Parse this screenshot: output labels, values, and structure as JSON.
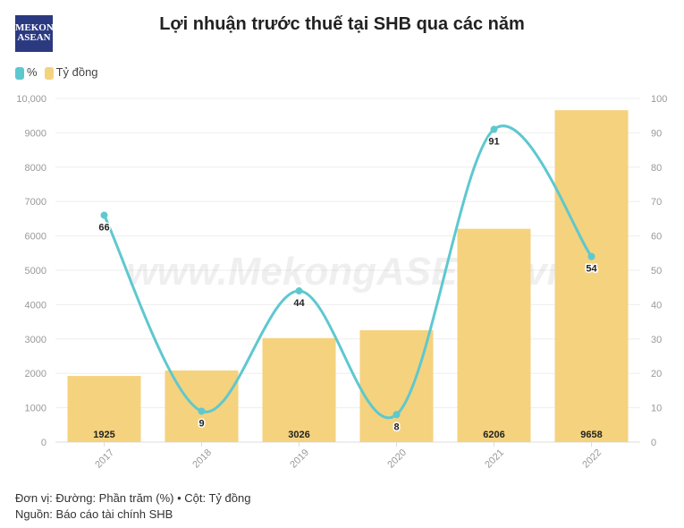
{
  "logo": {
    "line1": "MEKONG",
    "line2": "ASEAN"
  },
  "watermark": "www.MekongASEAN.vn",
  "chart_data": {
    "type": "bar+line",
    "title": "Lợi nhuận trước thuế tại SHB qua các năm",
    "categories": [
      "2017",
      "2018",
      "2019",
      "2020",
      "2021",
      "2022"
    ],
    "series": [
      {
        "name": "%",
        "type": "line",
        "axis": "right",
        "values": [
          66,
          9,
          44,
          8,
          91,
          54
        ],
        "color": "#5ec8cf"
      },
      {
        "name": "Tỷ đồng",
        "type": "bar",
        "axis": "left",
        "values": [
          1925,
          2083,
          3026,
          3255,
          6206,
          9658
        ],
        "labels": [
          "1925",
          "",
          "3026",
          "",
          "6206",
          "9658"
        ],
        "color": "#f5d27d"
      }
    ],
    "ylim_left": [
      0,
      10000
    ],
    "yticks_left": [
      "0",
      "1000",
      "2000",
      "3000",
      "4000",
      "5000",
      "6000",
      "7000",
      "8000",
      "9000",
      "10,000"
    ],
    "ylim_right": [
      0,
      100
    ],
    "yticks_right": [
      "0",
      "10",
      "20",
      "30",
      "40",
      "50",
      "60",
      "70",
      "80",
      "90",
      "100"
    ],
    "grid": true,
    "legend": "top-left"
  },
  "footer": {
    "unit": "Đơn vị: Đường: Phần trăm (%) • Cột: Tỷ đồng",
    "source": "Nguồn: Báo cáo tài chính SHB"
  }
}
